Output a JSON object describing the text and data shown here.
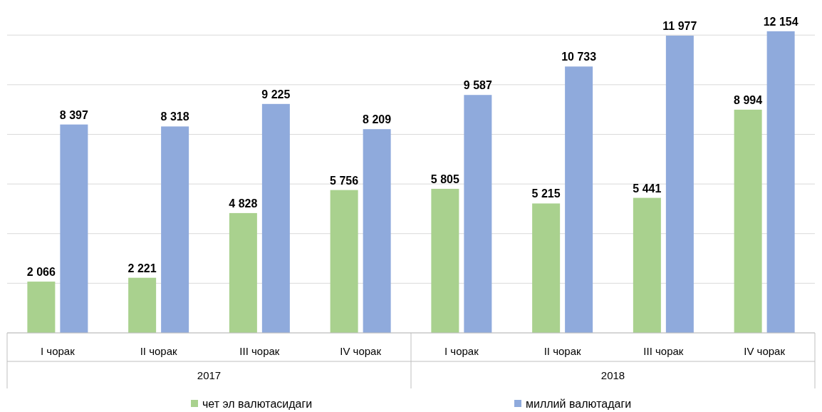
{
  "chart_data": {
    "type": "bar",
    "categories": [
      "I чорак",
      "II чорак",
      "III чорак",
      "IV чорак",
      "I чорак",
      "II чорак",
      "III чорак",
      "IV чорак"
    ],
    "series": [
      {
        "name": "чет эл валютасидаги",
        "color": "#a9d18e",
        "values": [
          2066,
          2221,
          4828,
          5756,
          5805,
          5215,
          5441,
          8994
        ]
      },
      {
        "name": "миллий валютадаги",
        "color": "#8faadc",
        "values": [
          8397,
          8318,
          9225,
          8209,
          9587,
          10733,
          11977,
          12154
        ]
      }
    ],
    "yticks": [
      {
        "value": 0,
        "label": null
      },
      {
        "value": 2000,
        "label": null
      },
      {
        "value": 4000,
        "label": null
      },
      {
        "value": 6000,
        "label": null
      },
      {
        "value": 8000,
        "label": null
      },
      {
        "value": 10000,
        "label": null
      },
      {
        "value": 12000,
        "label": null
      }
    ],
    "tick_labels": "x",
    "grid": "y",
    "data_labels": true,
    "legend": "bottom",
    "annotations": [
      "2017",
      "2018"
    ]
  }
}
